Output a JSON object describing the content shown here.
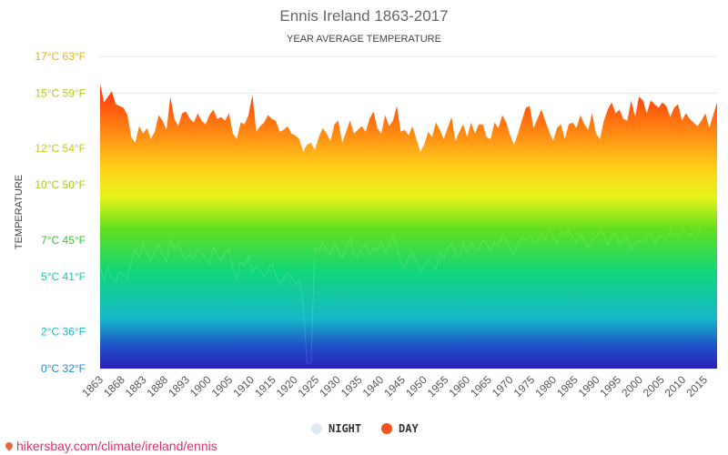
{
  "chart_data": {
    "type": "area",
    "title": "Ennis Ireland 1863-2017",
    "subtitle": "YEAR AVERAGE TEMPERATURE",
    "ylabel": "TEMPERATURE",
    "ylim": [
      0,
      17
    ],
    "y_ticks": [
      {
        "value": 0,
        "label": "0°C 32°F",
        "color": "#1e90d0"
      },
      {
        "value": 2,
        "label": "2°C 36°F",
        "color": "#17b8c8"
      },
      {
        "value": 5,
        "label": "5°C 41°F",
        "color": "#18c4a8"
      },
      {
        "value": 7,
        "label": "7°C 45°F",
        "color": "#3ac23a"
      },
      {
        "value": 10,
        "label": "10°C 50°F",
        "color": "#a6c81e"
      },
      {
        "value": 12,
        "label": "12°C 54°F",
        "color": "#c8c81e"
      },
      {
        "value": 15,
        "label": "15°C 59°F",
        "color": "#b4c81e"
      },
      {
        "value": 17,
        "label": "17°C 63°F",
        "color": "#e2b21e"
      }
    ],
    "x_tick_labels": [
      "1863",
      "1868",
      "1883",
      "1888",
      "1893",
      "1900",
      "1905",
      "1910",
      "1915",
      "1920",
      "1925",
      "1930",
      "1935",
      "1940",
      "1945",
      "1950",
      "1955",
      "1960",
      "1965",
      "1970",
      "1975",
      "1980",
      "1985",
      "1990",
      "1995",
      "2000",
      "2005",
      "2010",
      "2015"
    ],
    "legend": [
      {
        "name": "NIGHT",
        "color": "#e2e8f0"
      },
      {
        "name": "DAY",
        "color": "#f4511e"
      }
    ],
    "legend_position": "bottom-center",
    "grid": true,
    "series": [
      {
        "name": "DAY",
        "values": [
          15.5,
          14.5,
          14.8,
          15.1,
          14.4,
          14.3,
          14.2,
          13.8,
          12.6,
          12.3,
          13.2,
          12.8,
          13.1,
          12.5,
          12.9,
          13.8,
          13.5,
          13.0,
          14.8,
          13.6,
          13.2,
          13.9,
          14.0,
          13.6,
          13.4,
          13.9,
          13.5,
          13.3,
          13.8,
          14.1,
          13.6,
          13.7,
          13.5,
          13.9,
          12.8,
          12.5,
          13.4,
          13.3,
          13.8,
          14.9,
          12.9,
          13.2,
          13.4,
          13.8,
          13.6,
          13.5,
          12.9,
          13.0,
          13.2,
          12.8,
          12.7,
          12.5,
          11.8,
          12.2,
          12.3,
          11.9,
          12.6,
          13.1,
          12.8,
          12.4,
          13.3,
          13.5,
          12.3,
          12.9,
          13.5,
          12.8,
          13.0,
          13.2,
          12.9,
          13.6,
          14.0,
          13.1,
          12.8,
          13.8,
          13.2,
          13.5,
          14.3,
          12.9,
          13.0,
          12.7,
          13.2,
          12.5,
          11.8,
          12.2,
          12.9,
          12.6,
          13.4,
          13.0,
          12.5,
          13.1,
          13.7,
          12.4,
          12.9,
          13.3,
          12.6,
          13.4,
          12.8,
          13.3,
          13.3,
          12.6,
          12.5,
          13.4,
          13.1,
          13.8,
          13.4,
          12.7,
          12.2,
          12.8,
          13.5,
          14.2,
          14.3,
          13.1,
          13.6,
          14.1,
          13.5,
          12.9,
          12.4,
          13.1,
          13.3,
          12.5,
          13.3,
          13.4,
          13.1,
          13.8,
          13.3,
          13.0,
          13.9,
          12.8,
          12.5,
          13.5,
          14.1,
          14.5,
          13.9,
          14.1,
          13.6,
          13.5,
          14.6,
          13.7,
          14.8,
          14.6,
          13.9,
          14.6,
          14.4,
          14.2,
          14.5,
          14.3,
          13.7,
          14.2,
          14.4,
          13.5,
          13.9,
          13.6,
          13.4,
          13.2,
          13.5,
          13.9,
          13.1,
          13.8,
          14.5
        ]
      },
      {
        "name": "NIGHT",
        "values": [
          5.6,
          4.8,
          5.5,
          4.9,
          4.7,
          5.3,
          5.1,
          4.9,
          5.8,
          6.5,
          6.0,
          6.8,
          6.3,
          5.9,
          6.4,
          6.8,
          6.2,
          5.8,
          7.0,
          6.5,
          6.8,
          6.3,
          5.9,
          6.2,
          6.0,
          6.5,
          6.3,
          6.0,
          5.7,
          6.6,
          6.2,
          5.9,
          6.3,
          6.5,
          5.4,
          4.9,
          5.8,
          5.6,
          6.1,
          5.2,
          5.6,
          5.3,
          5.0,
          5.4,
          5.7,
          5.1,
          4.6,
          4.9,
          5.2,
          5.0,
          4.6,
          4.8,
          3.5,
          0.3,
          0.3,
          6.6,
          6.4,
          6.9,
          6.5,
          6.2,
          6.8,
          6.4,
          6.0,
          6.6,
          7.1,
          6.3,
          6.0,
          6.5,
          6.8,
          6.2,
          6.6,
          6.4,
          6.9,
          6.3,
          6.6,
          7.3,
          6.6,
          5.8,
          5.5,
          6.1,
          6.3,
          5.8,
          5.2,
          5.6,
          6.0,
          5.7,
          5.4,
          6.3,
          6.0,
          6.6,
          6.8,
          6.2,
          6.1,
          6.8,
          6.3,
          6.9,
          6.6,
          6.5,
          7.0,
          6.8,
          6.4,
          6.9,
          6.7,
          7.3,
          7.0,
          6.5,
          6.2,
          6.8,
          7.2,
          7.0,
          7.3,
          6.9,
          6.8,
          7.4,
          7.0,
          7.6,
          7.2,
          6.8,
          7.5,
          7.3,
          7.6,
          7.1,
          6.9,
          7.3,
          7.0,
          6.6,
          7.0,
          7.2,
          7.5,
          7.3,
          6.7,
          7.1,
          7.4,
          6.8,
          7.0,
          7.2,
          6.5,
          6.8,
          7.0,
          6.9,
          7.2,
          7.4,
          6.8,
          7.1,
          7.3,
          7.0,
          7.5,
          7.3,
          7.2,
          7.6,
          7.4,
          7.2,
          7.6,
          7.3,
          7.7
        ]
      }
    ]
  },
  "legend": {
    "night_label": "NIGHT",
    "day_label": "DAY"
  },
  "footer": {
    "url": "hikersbay.com/climate/ireland/ennis"
  }
}
